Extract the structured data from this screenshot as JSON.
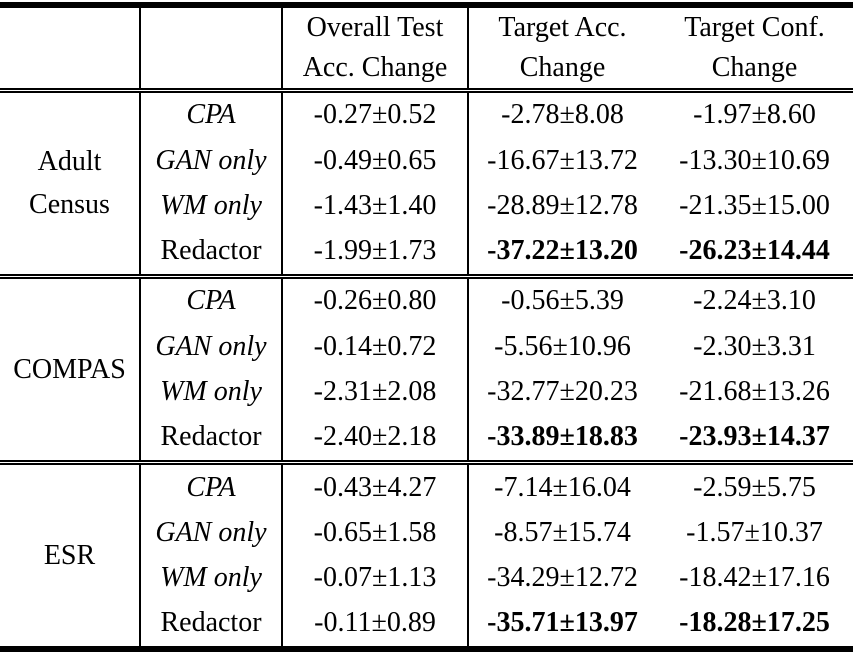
{
  "table": {
    "col_headers": [
      {
        "line1": "Overall Test",
        "line2": "Acc. Change"
      },
      {
        "line1": "Target Acc.",
        "line2": "Change"
      },
      {
        "line1": "Target Conf.",
        "line2": "Change"
      }
    ],
    "plus_minus_symbol": "±",
    "text_color": "#000000",
    "background_color": "#ffffff",
    "groups": [
      {
        "dataset": "Adult\nCensus",
        "rows": [
          {
            "method": "CPA",
            "italic": true,
            "bold_targets": false,
            "overall": "-0.27±0.52",
            "target_acc": "-2.78±8.08",
            "target_conf": "-1.97±8.60"
          },
          {
            "method": "GAN only",
            "italic": true,
            "bold_targets": false,
            "overall": "-0.49±0.65",
            "target_acc": "-16.67±13.72",
            "target_conf": "-13.30±10.69"
          },
          {
            "method": "WM only",
            "italic": true,
            "bold_targets": false,
            "overall": "-1.43±1.40",
            "target_acc": "-28.89±12.78",
            "target_conf": "-21.35±15.00"
          },
          {
            "method": "Redactor",
            "italic": false,
            "bold_targets": true,
            "overall": "-1.99±1.73",
            "target_acc": "-37.22±13.20",
            "target_conf": "-26.23±14.44"
          }
        ]
      },
      {
        "dataset": "COMPAS",
        "rows": [
          {
            "method": "CPA",
            "italic": true,
            "bold_targets": false,
            "overall": "-0.26±0.80",
            "target_acc": "-0.56±5.39",
            "target_conf": "-2.24±3.10"
          },
          {
            "method": "GAN only",
            "italic": true,
            "bold_targets": false,
            "overall": "-0.14±0.72",
            "target_acc": "-5.56±10.96",
            "target_conf": "-2.30±3.31"
          },
          {
            "method": "WM only",
            "italic": true,
            "bold_targets": false,
            "overall": "-2.31±2.08",
            "target_acc": "-32.77±20.23",
            "target_conf": "-21.68±13.26"
          },
          {
            "method": "Redactor",
            "italic": false,
            "bold_targets": true,
            "overall": "-2.40±2.18",
            "target_acc": "-33.89±18.83",
            "target_conf": "-23.93±14.37"
          }
        ]
      },
      {
        "dataset": "ESR",
        "rows": [
          {
            "method": "CPA",
            "italic": true,
            "bold_targets": false,
            "overall": "-0.43±4.27",
            "target_acc": "-7.14±16.04",
            "target_conf": "-2.59±5.75"
          },
          {
            "method": "GAN only",
            "italic": true,
            "bold_targets": false,
            "overall": "-0.65±1.58",
            "target_acc": "-8.57±15.74",
            "target_conf": "-1.57±10.37"
          },
          {
            "method": "WM only",
            "italic": true,
            "bold_targets": false,
            "overall": "-0.07±1.13",
            "target_acc": "-34.29±12.72",
            "target_conf": "-18.42±17.16"
          },
          {
            "method": "Redactor",
            "italic": false,
            "bold_targets": true,
            "overall": "-0.11±0.89",
            "target_acc": "-35.71±13.97",
            "target_conf": "-18.28±17.25"
          }
        ]
      }
    ]
  }
}
